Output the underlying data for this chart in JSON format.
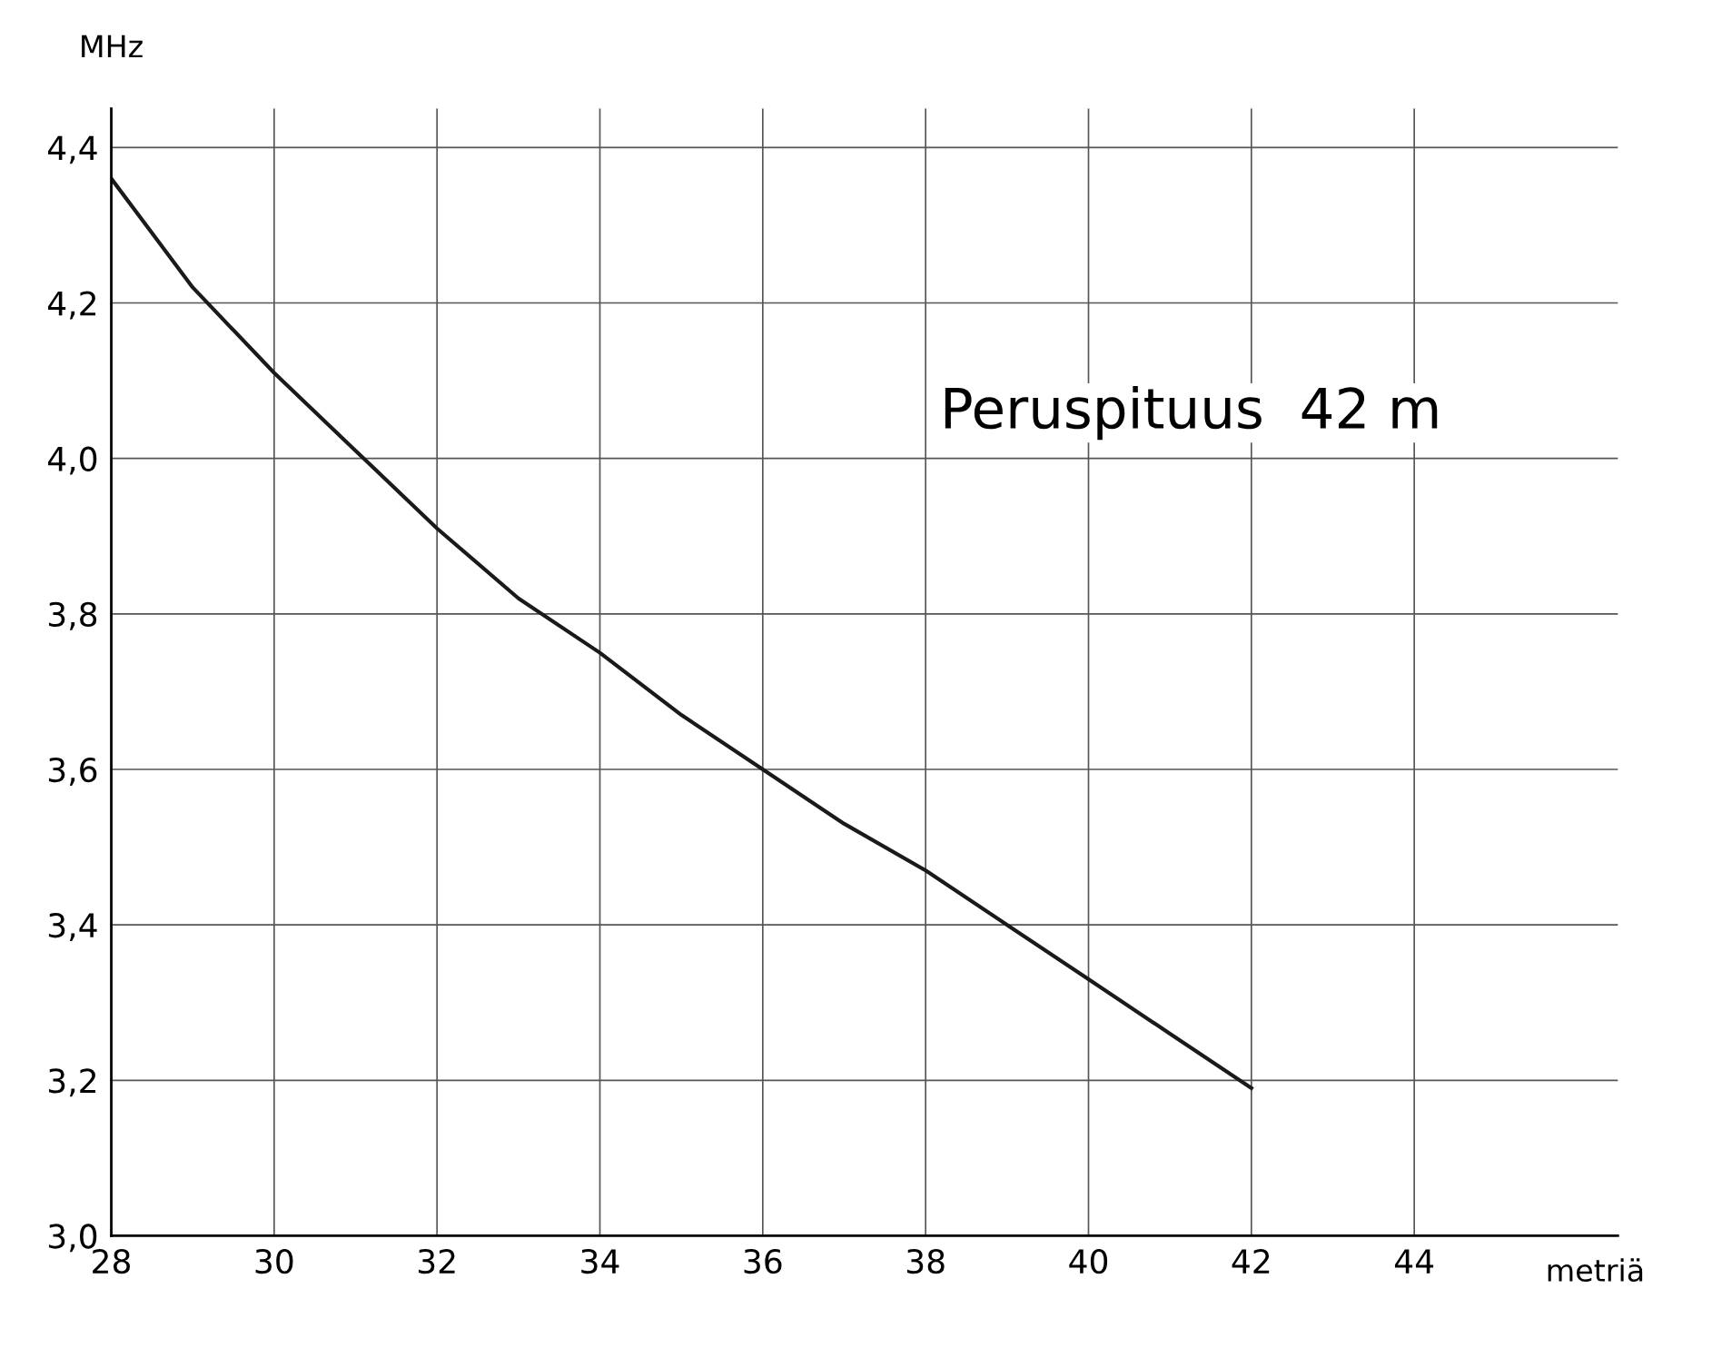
{
  "chart_data": {
    "type": "line",
    "xlabel": "metriä",
    "ylabel": "MHz",
    "annotations": [
      "Peruspituus  42 m"
    ],
    "x": [
      28,
      29,
      30,
      31,
      32,
      33,
      34,
      35,
      36,
      37,
      38,
      39,
      40,
      41,
      42
    ],
    "series": [
      {
        "color": "#1a1a1a",
        "values": [
          4.36,
          4.22,
          4.11,
          4.01,
          3.91,
          3.82,
          3.75,
          3.67,
          3.6,
          3.53,
          3.47,
          3.4,
          3.33,
          3.26,
          3.19
        ]
      }
    ],
    "xlim": [
      28,
      46.5
    ],
    "ylim": [
      3.0,
      4.45
    ],
    "xticks": [
      28,
      30,
      32,
      34,
      36,
      38,
      40,
      42,
      44
    ],
    "yticks": [
      {
        "value": 3.0,
        "label": "3,0"
      },
      {
        "value": 3.2,
        "label": "3,2"
      },
      {
        "value": 3.4,
        "label": "3,4"
      },
      {
        "value": 3.6,
        "label": "3,6"
      },
      {
        "value": 3.8,
        "label": "3,8"
      },
      {
        "value": 4.0,
        "label": "4,0"
      },
      {
        "value": 4.2,
        "label": "4,2"
      },
      {
        "value": 4.4,
        "label": "4,4"
      }
    ],
    "grid": true,
    "marker": "none",
    "line_style": "solid",
    "legend": false
  }
}
